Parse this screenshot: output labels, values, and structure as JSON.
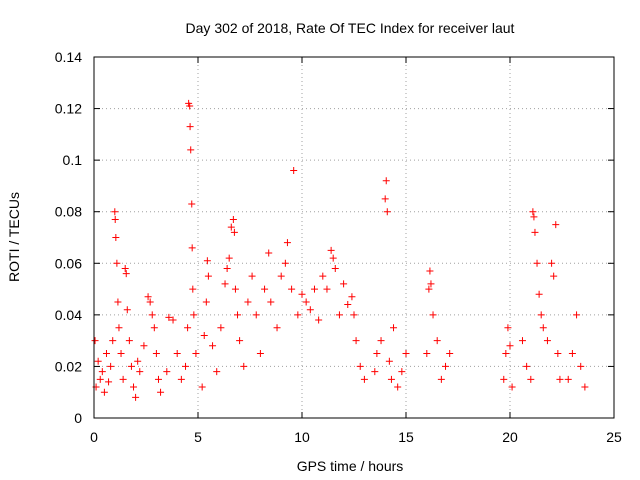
{
  "chart_data": {
    "type": "scatter",
    "title": "Day 302 of 2018, Rate Of TEC Index for receiver laut",
    "xlabel": "GPS time / hours",
    "ylabel": "ROTI / TECUs",
    "xlim": [
      0,
      25
    ],
    "ylim": [
      0,
      0.14
    ],
    "x_ticks": [
      0,
      5,
      10,
      15,
      20,
      25
    ],
    "x_tick_labels": [
      "0",
      "5",
      "10",
      "15",
      "20",
      "25"
    ],
    "y_ticks": [
      0,
      0.02,
      0.04,
      0.06,
      0.08,
      0.1,
      0.12,
      0.14
    ],
    "y_tick_labels": [
      "0",
      "0.02",
      "0.04",
      "0.06",
      "0.08",
      "0.1",
      "0.12",
      "0.14"
    ],
    "grid": true,
    "marker": "+",
    "marker_color": "#ff0000",
    "series": [
      {
        "name": "ROTI",
        "points": [
          [
            0.05,
            0.03
          ],
          [
            0.1,
            0.012
          ],
          [
            0.2,
            0.022
          ],
          [
            0.3,
            0.015
          ],
          [
            0.4,
            0.018
          ],
          [
            0.5,
            0.01
          ],
          [
            0.6,
            0.025
          ],
          [
            0.7,
            0.014
          ],
          [
            0.8,
            0.02
          ],
          [
            0.9,
            0.03
          ],
          [
            1.0,
            0.08
          ],
          [
            1.02,
            0.077
          ],
          [
            1.05,
            0.07
          ],
          [
            1.1,
            0.06
          ],
          [
            1.15,
            0.045
          ],
          [
            1.2,
            0.035
          ],
          [
            1.3,
            0.025
          ],
          [
            1.4,
            0.015
          ],
          [
            1.5,
            0.058
          ],
          [
            1.55,
            0.056
          ],
          [
            1.6,
            0.042
          ],
          [
            1.7,
            0.03
          ],
          [
            1.8,
            0.02
          ],
          [
            1.9,
            0.012
          ],
          [
            2.0,
            0.008
          ],
          [
            2.1,
            0.022
          ],
          [
            2.2,
            0.018
          ],
          [
            2.4,
            0.028
          ],
          [
            2.6,
            0.047
          ],
          [
            2.7,
            0.045
          ],
          [
            2.8,
            0.04
          ],
          [
            2.9,
            0.035
          ],
          [
            3.0,
            0.025
          ],
          [
            3.1,
            0.015
          ],
          [
            3.2,
            0.01
          ],
          [
            3.5,
            0.018
          ],
          [
            3.6,
            0.039
          ],
          [
            3.8,
            0.038
          ],
          [
            4.0,
            0.025
          ],
          [
            4.2,
            0.015
          ],
          [
            4.4,
            0.02
          ],
          [
            4.5,
            0.035
          ],
          [
            4.55,
            0.122
          ],
          [
            4.6,
            0.121
          ],
          [
            4.62,
            0.113
          ],
          [
            4.65,
            0.104
          ],
          [
            4.7,
            0.083
          ],
          [
            4.72,
            0.066
          ],
          [
            4.75,
            0.05
          ],
          [
            4.8,
            0.04
          ],
          [
            4.9,
            0.025
          ],
          [
            5.2,
            0.012
          ],
          [
            5.3,
            0.032
          ],
          [
            5.4,
            0.045
          ],
          [
            5.45,
            0.061
          ],
          [
            5.5,
            0.055
          ],
          [
            5.7,
            0.028
          ],
          [
            5.9,
            0.018
          ],
          [
            6.1,
            0.035
          ],
          [
            6.3,
            0.052
          ],
          [
            6.4,
            0.058
          ],
          [
            6.5,
            0.062
          ],
          [
            6.6,
            0.074
          ],
          [
            6.7,
            0.077
          ],
          [
            6.75,
            0.072
          ],
          [
            6.8,
            0.05
          ],
          [
            6.9,
            0.04
          ],
          [
            7.0,
            0.03
          ],
          [
            7.2,
            0.02
          ],
          [
            7.4,
            0.045
          ],
          [
            7.6,
            0.055
          ],
          [
            7.8,
            0.04
          ],
          [
            8.0,
            0.025
          ],
          [
            8.2,
            0.05
          ],
          [
            8.4,
            0.064
          ],
          [
            8.5,
            0.045
          ],
          [
            8.8,
            0.035
          ],
          [
            9.0,
            0.055
          ],
          [
            9.2,
            0.06
          ],
          [
            9.3,
            0.068
          ],
          [
            9.5,
            0.05
          ],
          [
            9.6,
            0.096
          ],
          [
            9.8,
            0.04
          ],
          [
            10.0,
            0.048
          ],
          [
            10.2,
            0.045
          ],
          [
            10.4,
            0.042
          ],
          [
            10.6,
            0.05
          ],
          [
            10.8,
            0.038
          ],
          [
            11.0,
            0.055
          ],
          [
            11.2,
            0.05
          ],
          [
            11.4,
            0.065
          ],
          [
            11.5,
            0.062
          ],
          [
            11.6,
            0.058
          ],
          [
            11.8,
            0.04
          ],
          [
            12.0,
            0.052
          ],
          [
            12.2,
            0.044
          ],
          [
            12.4,
            0.047
          ],
          [
            12.5,
            0.04
          ],
          [
            12.6,
            0.03
          ],
          [
            12.8,
            0.02
          ],
          [
            13.0,
            0.015
          ],
          [
            13.5,
            0.018
          ],
          [
            13.6,
            0.025
          ],
          [
            13.8,
            0.03
          ],
          [
            14.0,
            0.085
          ],
          [
            14.05,
            0.092
          ],
          [
            14.1,
            0.08
          ],
          [
            14.2,
            0.022
          ],
          [
            14.3,
            0.015
          ],
          [
            14.4,
            0.035
          ],
          [
            14.6,
            0.012
          ],
          [
            14.8,
            0.018
          ],
          [
            15.0,
            0.025
          ],
          [
            16.0,
            0.025
          ],
          [
            16.1,
            0.05
          ],
          [
            16.15,
            0.057
          ],
          [
            16.2,
            0.052
          ],
          [
            16.3,
            0.04
          ],
          [
            16.5,
            0.03
          ],
          [
            16.7,
            0.015
          ],
          [
            16.9,
            0.02
          ],
          [
            17.1,
            0.025
          ],
          [
            19.7,
            0.015
          ],
          [
            19.8,
            0.025
          ],
          [
            19.9,
            0.035
          ],
          [
            20.0,
            0.028
          ],
          [
            20.1,
            0.012
          ],
          [
            20.6,
            0.03
          ],
          [
            20.8,
            0.02
          ],
          [
            21.0,
            0.015
          ],
          [
            21.1,
            0.08
          ],
          [
            21.15,
            0.078
          ],
          [
            21.2,
            0.072
          ],
          [
            21.3,
            0.06
          ],
          [
            21.4,
            0.048
          ],
          [
            21.5,
            0.04
          ],
          [
            21.6,
            0.035
          ],
          [
            21.8,
            0.03
          ],
          [
            22.0,
            0.06
          ],
          [
            22.1,
            0.055
          ],
          [
            22.2,
            0.075
          ],
          [
            22.3,
            0.025
          ],
          [
            22.4,
            0.015
          ],
          [
            22.8,
            0.015
          ],
          [
            23.0,
            0.025
          ],
          [
            23.2,
            0.04
          ],
          [
            23.4,
            0.02
          ],
          [
            23.6,
            0.012
          ]
        ]
      }
    ]
  }
}
